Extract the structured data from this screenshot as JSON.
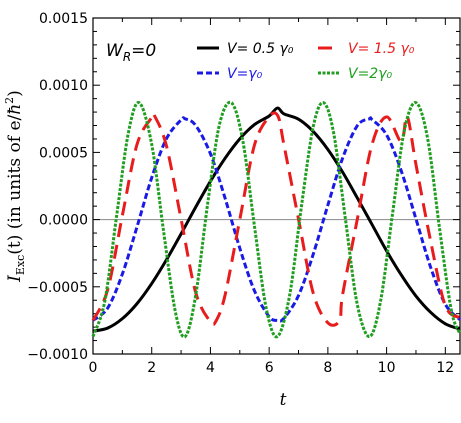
{
  "chart_data": {
    "type": "line",
    "title": "",
    "xlabel": "t",
    "ylabel": "I_Exc(t) (in units of e/ħ²)",
    "ylabel_parts": {
      "symbol": "I",
      "subscript": "Exc",
      "rest": "(t) (in units of e/",
      "hbar": "ħ",
      "sup": "2",
      "close": ")"
    },
    "xlim": [
      0,
      12.5
    ],
    "ylim": [
      -0.001,
      0.0015
    ],
    "x_ticks": [
      0,
      2,
      4,
      6,
      8,
      10,
      12
    ],
    "x_tick_labels": [
      "0",
      "2",
      "4",
      "6",
      "8",
      "10",
      "12"
    ],
    "y_ticks": [
      -0.001,
      -0.0005,
      0.0,
      0.0005,
      0.001,
      0.0015
    ],
    "y_tick_labels": [
      "−0.0010",
      "−0.0005",
      "0.0000",
      "0.0005",
      "0.0010",
      "0.0015"
    ],
    "zero_line": true,
    "grid": false,
    "annotation": {
      "text": "W",
      "subscript": "R",
      "suffix": "=0"
    },
    "legend_position": "top",
    "series": [
      {
        "name": "V= 0.5 γ₀",
        "color": "#000000",
        "dash": "solid",
        "x": [
          0,
          0.5,
          1,
          1.5,
          2,
          2.5,
          3,
          3.5,
          4,
          4.5,
          5,
          5.5,
          6,
          6.28,
          6.5,
          7,
          7.5,
          8,
          8.5,
          9,
          9.5,
          10,
          10.5,
          11,
          11.5,
          12,
          12.5
        ],
        "y": [
          -0.00083,
          -0.000807,
          -0.000737,
          -0.000625,
          -0.000476,
          -0.0003,
          -0.000106,
          9.4e-05,
          0.000285,
          0.000457,
          0.000601,
          0.000707,
          0.000771,
          0.00083,
          0.000787,
          0.000747,
          0.000656,
          0.000522,
          0.000354,
          0.000162,
          -3.5e-05,
          -0.000233,
          -0.000412,
          -0.000569,
          -0.00069,
          -0.000775,
          -0.000814
        ]
      },
      {
        "name": "V= 1.5 γ₀",
        "color": "#e81c1c",
        "dash": "long-dash",
        "x": [
          0,
          0.5,
          1,
          1.5,
          2,
          2.1,
          2.5,
          3,
          3.5,
          4,
          4.2,
          4.5,
          5,
          5.5,
          6,
          6.3,
          6.5,
          7,
          7.5,
          8,
          8.4,
          8.5,
          9,
          9.5,
          10,
          10.5,
          10.7,
          11,
          11.5,
          12,
          12.5
        ],
        "y": [
          -0.00075,
          -0.000522,
          3e-05,
          0.00056,
          0.00076,
          0.00077,
          0.00055,
          4e-06,
          -0.000544,
          -0.00076,
          -0.00075,
          -0.00056,
          0.0,
          0.000555,
          0.000765,
          0.00077,
          0.00056,
          3e-06,
          -0.000546,
          -0.000768,
          -0.00075,
          -0.00056,
          0.0,
          0.000556,
          0.000764,
          0.00058,
          0.00077,
          0.00041,
          -0.00016,
          -0.00064,
          -0.00073
        ]
      },
      {
        "name": "V=γ₀",
        "color": "#1a1ae6",
        "dash": "short-dash",
        "x": [
          0,
          0.5,
          1,
          1.5,
          2,
          2.5,
          3,
          3.14,
          3.5,
          4,
          4.5,
          5,
          5.5,
          6,
          6.28,
          6.5,
          7,
          7.5,
          8,
          8.5,
          9,
          9.42,
          9.5,
          10,
          10.5,
          11,
          11.5,
          12,
          12.5
        ],
        "y": [
          -0.00075,
          -0.000658,
          -0.000405,
          -5.3e-05,
          0.000312,
          0.000601,
          0.000742,
          0.00075,
          0.0007,
          0.00049,
          0.000158,
          -0.000213,
          -0.00053,
          -0.000722,
          -0.00075,
          -0.000735,
          -0.000565,
          -0.000258,
          0.000108,
          0.000456,
          0.000698,
          0.00075,
          0.000745,
          0.00063,
          0.000362,
          5e-06,
          -0.000355,
          -0.00063,
          -0.000745
        ]
      },
      {
        "name": "V=2γ₀",
        "color": "#1f9e1f",
        "dash": "fine-dash",
        "x": [
          0,
          0.4,
          0.8,
          1.2,
          1.57,
          2.0,
          2.4,
          2.8,
          3.14,
          3.5,
          3.9,
          4.3,
          4.71,
          5.1,
          5.5,
          5.9,
          6.28,
          6.7,
          7.1,
          7.5,
          7.85,
          8.2,
          8.6,
          9.0,
          9.42,
          9.8,
          10.2,
          10.6,
          11.0,
          11.4,
          11.8,
          12.2,
          12.5
        ],
        "y": [
          -0.00087,
          -0.00061,
          2e-05,
          0.00064,
          0.00087,
          0.00056,
          -8e-05,
          -0.00068,
          -0.00087,
          -0.00056,
          0.00011,
          0.0007,
          0.00087,
          0.00059,
          -5e-05,
          -0.00066,
          -0.00087,
          -0.00056,
          0.0001,
          0.00069,
          0.00087,
          0.00064,
          0.0,
          -0.00063,
          -0.00087,
          -0.0006,
          4e-05,
          0.00066,
          0.00087,
          0.0006,
          -6e-05,
          -0.00067,
          -0.00085
        ]
      }
    ]
  }
}
